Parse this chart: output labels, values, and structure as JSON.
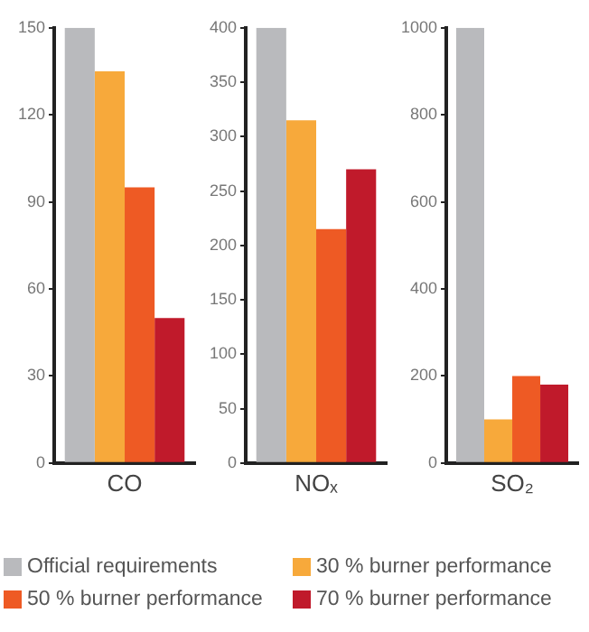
{
  "chart_data": [
    {
      "type": "bar",
      "categories": [
        "CO"
      ],
      "ylim": [
        0,
        150
      ],
      "yticks": [
        0,
        30,
        60,
        90,
        120,
        150
      ],
      "grid": false,
      "legend": "bottom",
      "series": [
        {
          "name": "Official requirements",
          "color": "#b9babd",
          "values": [
            150
          ]
        },
        {
          "name": "30 % burner performance",
          "color": "#f7a93b",
          "values": [
            135
          ]
        },
        {
          "name": "50 % burner performance",
          "color": "#ee5a24",
          "values": [
            95
          ]
        },
        {
          "name": "70 % burner performance",
          "color": "#c01a2b",
          "values": [
            50
          ]
        }
      ]
    },
    {
      "type": "bar",
      "categories": [
        "NOₓ"
      ],
      "ylim": [
        0,
        400
      ],
      "yticks": [
        0,
        50,
        100,
        150,
        200,
        250,
        300,
        350,
        400
      ],
      "grid": false,
      "series": [
        {
          "color": "#b9babd",
          "values": [
            400
          ]
        },
        {
          "color": "#f7a93b",
          "values": [
            315
          ]
        },
        {
          "color": "#ee5a24",
          "values": [
            215
          ]
        },
        {
          "color": "#c01a2b",
          "values": [
            270
          ]
        }
      ]
    },
    {
      "type": "bar",
      "categories": [
        "SO₂"
      ],
      "ylim": [
        0,
        1000
      ],
      "yticks": [
        0,
        200,
        400,
        600,
        800,
        1000
      ],
      "grid": false,
      "series": [
        {
          "color": "#b9babd",
          "values": [
            1000
          ]
        },
        {
          "color": "#f7a93b",
          "values": [
            100
          ]
        },
        {
          "color": "#ee5a24",
          "values": [
            200
          ]
        },
        {
          "color": "#c01a2b",
          "values": [
            180
          ]
        }
      ]
    }
  ]
}
